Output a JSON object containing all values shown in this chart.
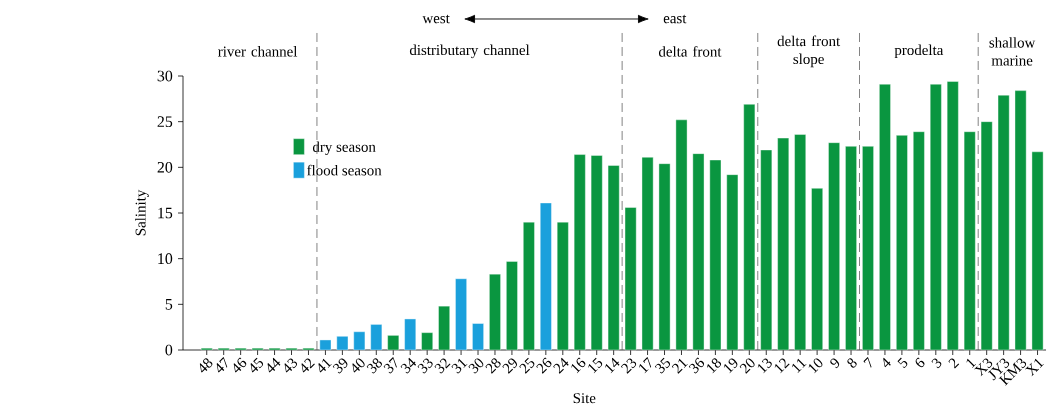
{
  "chart_data": {
    "type": "bar",
    "xlabel": "Site",
    "ylabel": "Salinity",
    "categories": [
      "48",
      "47",
      "46",
      "45",
      "44",
      "43",
      "42",
      "41",
      "39",
      "40",
      "38",
      "37",
      "34",
      "33",
      "32",
      "31",
      "30",
      "28",
      "29",
      "25",
      "26",
      "24",
      "16",
      "15",
      "14",
      "23",
      "17",
      "35",
      "21",
      "36",
      "18",
      "19",
      "20",
      "13",
      "12",
      "11",
      "10",
      "9",
      "8",
      "7",
      "4",
      "5",
      "6",
      "3",
      "2",
      "1",
      "X3",
      "JY3",
      "KM3",
      "X1"
    ],
    "series": [
      {
        "name": "dry season",
        "color": "#0a9640",
        "values": [
          0.2,
          0.2,
          0.2,
          0.2,
          0.2,
          0.2,
          0.2,
          null,
          null,
          null,
          null,
          1.6,
          null,
          1.9,
          4.8,
          null,
          null,
          8.3,
          9.7,
          14.0,
          null,
          14.0,
          21.4,
          21.3,
          20.2,
          15.6,
          21.1,
          20.4,
          25.2,
          21.5,
          20.8,
          19.2,
          26.9,
          21.9,
          23.2,
          23.6,
          17.7,
          22.7,
          22.3,
          22.3,
          29.1,
          23.5,
          23.9,
          29.1,
          29.4,
          23.9,
          25.0,
          27.9,
          28.4,
          21.7
        ]
      },
      {
        "name": "flood season",
        "color": "#1aa0dc",
        "values": [
          null,
          null,
          null,
          null,
          null,
          null,
          null,
          1.1,
          1.5,
          2.0,
          2.8,
          null,
          3.4,
          null,
          null,
          7.8,
          2.9,
          null,
          null,
          null,
          16.1,
          null,
          null,
          null,
          null,
          null,
          null,
          null,
          null,
          null,
          null,
          null,
          null,
          null,
          null,
          null,
          null,
          null,
          null,
          null,
          null,
          null,
          null,
          null,
          null,
          null,
          null,
          null,
          null,
          null
        ]
      }
    ],
    "ylim": [
      0,
      30
    ],
    "yticks": [
      0,
      5,
      10,
      15,
      20,
      25,
      30
    ],
    "legend": "top left",
    "annotations": [
      "west",
      "east",
      "river channel",
      "distributary channel",
      "delta front",
      "delta front slope",
      "prodelta",
      "shallow marine"
    ]
  }
}
